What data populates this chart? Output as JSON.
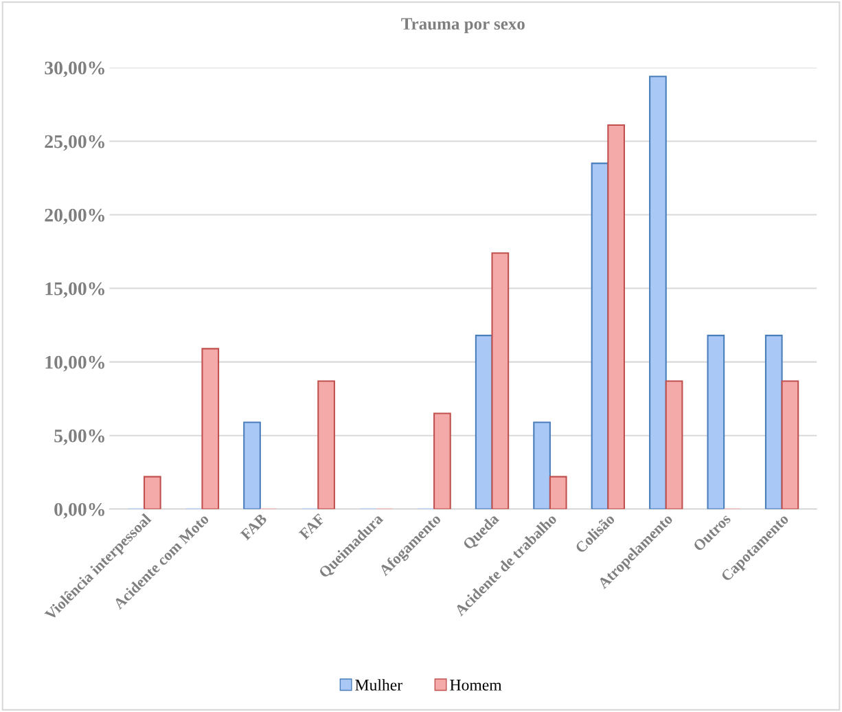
{
  "chart_data": {
    "type": "bar",
    "title": "Trauma por sexo",
    "categories": [
      "Violência interpessoal",
      "Acidente com Moto",
      "FAB",
      "FAF",
      "Queimadura",
      "Afogamento",
      "Queda",
      "Acidente de trabalho",
      "Colisão",
      "Atropelamento",
      "Outros",
      "Capotamento"
    ],
    "series": [
      {
        "name": "Mulher",
        "color": "#a9c8f5",
        "values": [
          0,
          0,
          5.9,
          0,
          0,
          0,
          11.8,
          5.9,
          23.5,
          29.4,
          11.8,
          11.8
        ]
      },
      {
        "name": "Homem",
        "color": "#f5aaaa",
        "values": [
          2.2,
          10.9,
          0,
          8.7,
          0,
          6.5,
          17.4,
          2.2,
          26.1,
          8.7,
          0,
          8.7
        ]
      }
    ],
    "ylim": [
      0,
      30
    ],
    "yticks": [
      {
        "value": 0,
        "label": "0,00%"
      },
      {
        "value": 5,
        "label": "5,00%"
      },
      {
        "value": 10,
        "label": "10,00%"
      },
      {
        "value": 15,
        "label": "15,00%"
      },
      {
        "value": 20,
        "label": "20,00%"
      },
      {
        "value": 25,
        "label": "25,00%"
      },
      {
        "value": 30,
        "label": "30,00%"
      }
    ],
    "grid": "y",
    "legend": "bottom"
  }
}
